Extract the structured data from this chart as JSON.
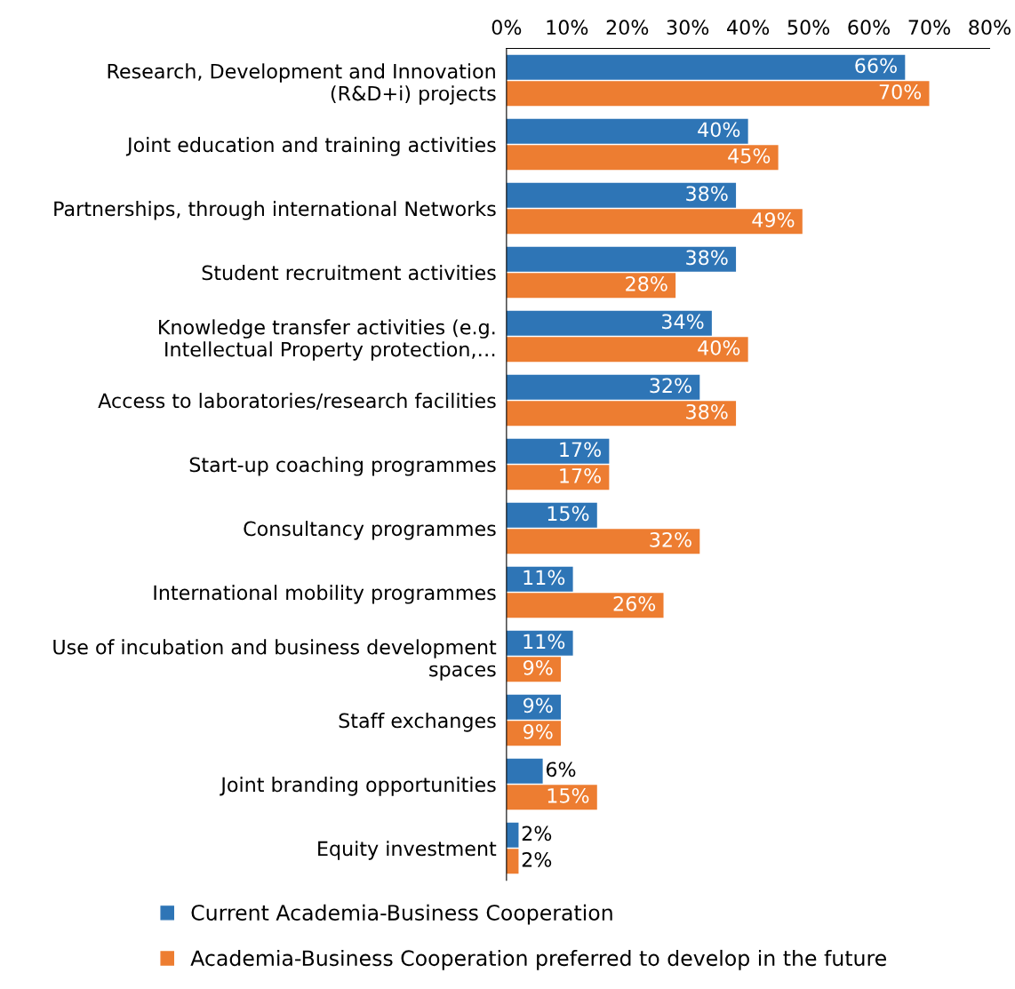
{
  "chart_data": {
    "type": "bar",
    "orientation": "horizontal",
    "categories": [
      "Research, Development and Innovation\n(R&D+i) projects",
      "Joint education and training activities",
      "Partnerships, through international Networks",
      "Student recruitment activities",
      "Knowledge transfer activities (e.g.\nIntellectual Property protection,…",
      "Access to laboratories/research facilities",
      "Start-up coaching programmes",
      "Consultancy programmes",
      "International mobility programmes",
      "Use of incubation and business development\nspaces",
      "Staff exchanges",
      "Joint branding opportunities",
      "Equity investment"
    ],
    "series": [
      {
        "name": "Current Academia-Business Cooperation",
        "color": "#2e75b6",
        "values": [
          66,
          40,
          38,
          38,
          34,
          32,
          17,
          15,
          11,
          11,
          9,
          6,
          2
        ],
        "value_labels": [
          "66%",
          "40%",
          "38%",
          "38%",
          "34%",
          "32%",
          "17%",
          "15%",
          "11%",
          "11%",
          "9%",
          "6%",
          "2%"
        ]
      },
      {
        "name": "Academia-Business Cooperation preferred to develop in the future",
        "color": "#ed7d31",
        "values": [
          70,
          45,
          49,
          28,
          40,
          38,
          17,
          32,
          26,
          9,
          9,
          15,
          2
        ],
        "value_labels": [
          "70%",
          "45%",
          "49%",
          "28%",
          "40%",
          "38%",
          "17%",
          "32%",
          "26%",
          "9%",
          "9%",
          "15%",
          "2%"
        ]
      }
    ],
    "xlim": [
      0,
      80
    ],
    "xticks": [
      {
        "value": 0,
        "label": "0%"
      },
      {
        "value": 10,
        "label": "10%"
      },
      {
        "value": 20,
        "label": "20%"
      },
      {
        "value": 30,
        "label": "30%"
      },
      {
        "value": 40,
        "label": "40%"
      },
      {
        "value": 50,
        "label": "50%"
      },
      {
        "value": 60,
        "label": "60%"
      },
      {
        "value": 70,
        "label": "70%"
      },
      {
        "value": 80,
        "label": "80%"
      }
    ],
    "grid": false,
    "legend": "bottom"
  }
}
